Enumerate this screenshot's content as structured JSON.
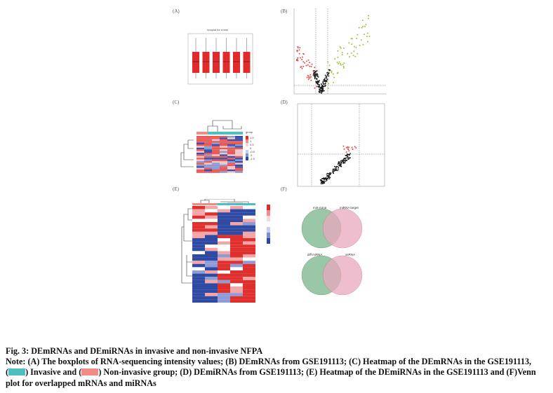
{
  "panels": {
    "a": {
      "label": "(A)",
      "title": "boxplot for a test",
      "box_color": "#e32a2a"
    },
    "b": {
      "label": "(B)"
    },
    "c": {
      "label": "(C)",
      "legend_title": "group",
      "legend_ticks": [
        "1.5",
        "1",
        "0.5",
        "0",
        "-0.5",
        "-1",
        "-1.5"
      ]
    },
    "d": {
      "label": "(D)"
    },
    "e": {
      "label": "(E)"
    },
    "f": {
      "label": "(F)",
      "venn1": {
        "left": "mirt-mrna",
        "right": "miRNA target"
      },
      "venn2": {
        "left": "diff miRNA",
        "right": "ssRNA"
      }
    }
  },
  "caption": {
    "line1": "Fig. 3:  DEmRNAs and DEmiRNAs in invasive and non-invasive NFPA",
    "line2": "Note: (A) The boxplots of RNA-sequencing intensity values; (B) DEmRNAs from GSE191113; (C) Heatmap of the DEmRNAs in the GSE191113,",
    "line3a": "(",
    "line3b": ") Invasive and (",
    "line3c": ") Non-invasive group; (D) DEmiRNAs from GSE191113; (E) Heatmap of the DEmiRNAs in the GSE191113 and (F)Venn",
    "line4": "plot for overlapped mRNAs and miRNAs"
  },
  "colors": {
    "invasive": "#4dbfc3",
    "non_invasive": "#f28a86",
    "up": "#9ac43c",
    "down": "#e84a4a",
    "venn_left": "#8fc29e",
    "venn_right": "#e9a9bf"
  }
}
